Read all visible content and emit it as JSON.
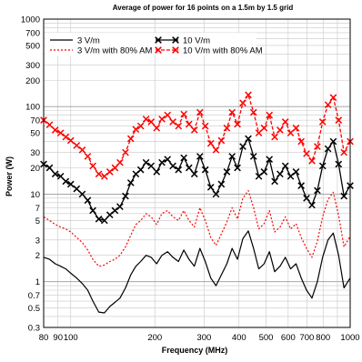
{
  "chart_data": {
    "type": "line",
    "title": "Average of power for 16 points on a 1.5m by 1.5 grid",
    "xlabel": "Frequency (MHz)",
    "ylabel": "Power (W)",
    "xscale": "log",
    "yscale": "log",
    "xlim": [
      80,
      1000
    ],
    "ylim": [
      0.3,
      1000
    ],
    "grid": true,
    "legend_position": "top-left",
    "x_ticks": [
      80,
      90,
      100,
      200,
      300,
      400,
      500,
      600,
      700,
      800,
      1000
    ],
    "x_tick_labels": [
      "80",
      "90",
      "100",
      "200",
      "300",
      "400",
      "500",
      "600",
      "700",
      "800",
      "1000"
    ],
    "y_ticks": [
      0.3,
      0.5,
      0.7,
      1,
      2,
      3,
      5,
      7,
      10,
      20,
      30,
      50,
      70,
      100,
      200,
      300,
      500,
      700,
      1000
    ],
    "y_tick_labels": [
      "0.3",
      "0.5",
      "0.7",
      "1",
      "2",
      "3",
      "5",
      "7",
      "10",
      "20",
      "30",
      "50",
      "70",
      "100",
      "200",
      "300",
      "500",
      "700",
      "1000"
    ],
    "x": [
      80,
      84,
      88,
      92,
      96,
      100,
      105,
      110,
      115,
      120,
      126,
      132,
      138,
      144,
      150,
      157,
      164,
      171,
      178,
      186,
      194,
      203,
      212,
      222,
      232,
      243,
      254,
      265,
      277,
      290,
      303,
      317,
      331,
      346,
      362,
      378,
      395,
      413,
      432,
      451,
      471,
      492,
      514,
      537,
      561,
      586,
      612,
      640,
      668,
      698,
      730,
      763,
      797,
      833,
      870,
      909,
      950,
      1000
    ],
    "series": [
      {
        "name": "3 V/m",
        "color": "#000000",
        "style": "solid",
        "markers": false,
        "values": [
          1.9,
          1.8,
          1.6,
          1.5,
          1.4,
          1.25,
          1.1,
          0.95,
          0.8,
          0.6,
          0.45,
          0.44,
          0.52,
          0.58,
          0.65,
          0.85,
          1.2,
          1.5,
          1.7,
          2.0,
          1.9,
          1.6,
          2.0,
          2.2,
          1.9,
          1.7,
          2.3,
          1.8,
          1.5,
          2.4,
          1.7,
          1.1,
          0.9,
          1.2,
          1.6,
          2.4,
          1.8,
          3.1,
          3.8,
          2.4,
          1.4,
          1.6,
          2.2,
          1.3,
          1.5,
          1.9,
          1.4,
          1.6,
          1.1,
          0.8,
          0.65,
          1.0,
          1.9,
          3.0,
          3.6,
          2.0,
          0.85,
          1.1
        ]
      },
      {
        "name": "3 V/m with 80% AM",
        "color": "#ff0000",
        "style": "dotted",
        "markers": false,
        "values": [
          5.5,
          5.0,
          4.5,
          4.2,
          4.0,
          3.7,
          3.2,
          2.8,
          2.3,
          1.8,
          1.5,
          1.55,
          1.7,
          1.8,
          2.0,
          2.5,
          3.4,
          4.5,
          5.0,
          6.0,
          5.5,
          4.5,
          6.0,
          6.5,
          5.5,
          5.0,
          6.5,
          5.0,
          4.2,
          7.0,
          5.0,
          3.2,
          2.6,
          3.5,
          4.8,
          7.0,
          5.2,
          9.0,
          11.0,
          7.0,
          4.0,
          4.6,
          6.5,
          3.7,
          4.2,
          5.5,
          4.0,
          4.6,
          3.2,
          2.4,
          1.9,
          2.9,
          5.5,
          8.7,
          10.5,
          5.7,
          2.5,
          3.3
        ]
      },
      {
        "name": "10 V/m",
        "color": "#000000",
        "style": "solid",
        "markers": true,
        "values": [
          22,
          20,
          17,
          16,
          14,
          13,
          11.5,
          10,
          8.5,
          6.5,
          5.2,
          5.0,
          5.8,
          6.5,
          7.2,
          9.5,
          13.5,
          17,
          19,
          23,
          21,
          18,
          23,
          25,
          21,
          19,
          26,
          20,
          17,
          27,
          19,
          12,
          10,
          13,
          18,
          27,
          20,
          35,
          43,
          27,
          16,
          18,
          25,
          14,
          17,
          21,
          16,
          18,
          12.5,
          9.0,
          7.5,
          11,
          21,
          33,
          40,
          22,
          9.5,
          12.5
        ]
      },
      {
        "name": "10 V/m with 80% AM",
        "color": "#ff0000",
        "style": "dashed",
        "markers": true,
        "values": [
          70,
          62,
          54,
          50,
          45,
          41,
          36,
          32,
          27,
          21,
          17,
          16,
          18,
          20,
          23,
          30,
          43,
          55,
          60,
          72,
          67,
          57,
          72,
          80,
          67,
          60,
          82,
          63,
          54,
          86,
          60,
          38,
          32,
          41,
          57,
          86,
          63,
          110,
          136,
          86,
          50,
          57,
          80,
          45,
          54,
          67,
          50,
          57,
          40,
          29,
          24,
          35,
          67,
          105,
          127,
          70,
          30,
          40
        ]
      }
    ]
  }
}
